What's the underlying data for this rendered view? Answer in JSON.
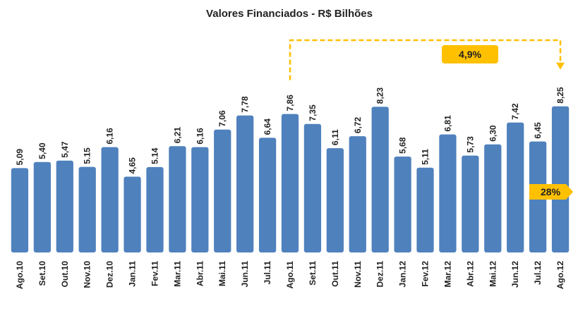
{
  "chart_data": {
    "type": "bar",
    "title": "Valores Financiados - R$ Bilhões",
    "categories": [
      "Ago.10",
      "Set.10",
      "Out.10",
      "Nov.10",
      "Dez.10",
      "Jan.11",
      "Fev.11",
      "Mar.11",
      "Abr.11",
      "Mai.11",
      "Jun.11",
      "Jul.11",
      "Ago.11",
      "Set.11",
      "Out.11",
      "Nov.11",
      "Dez.11",
      "Jan.12",
      "Fev.12",
      "Mar.12",
      "Abr.12",
      "Mai.12",
      "Jun.12",
      "Jul.12",
      "Ago.12"
    ],
    "values": [
      5.09,
      5.4,
      5.47,
      5.15,
      6.16,
      4.65,
      5.14,
      6.21,
      6.16,
      7.06,
      7.78,
      6.64,
      7.86,
      7.35,
      6.11,
      6.72,
      8.23,
      5.68,
      5.11,
      6.81,
      5.73,
      6.3,
      7.42,
      6.45,
      8.25
    ],
    "value_labels": [
      "5,09",
      "5,40",
      "5,47",
      "5.15",
      "6,16",
      "4,65",
      "5.14",
      "6,21",
      "6,16",
      "7,06",
      "7,78",
      "6,64",
      "7,86",
      "7,35",
      "6,11",
      "6,72",
      "8,23",
      "5,68",
      "5,11",
      "6,81",
      "5,73",
      "6,30",
      "7,42",
      "6,45",
      "8,25"
    ],
    "color": "#4f81bd",
    "annotation_color": "#ffc000",
    "ylim": [
      0.77,
      9.0
    ],
    "annotations": [
      "4,9%",
      "28%"
    ]
  }
}
